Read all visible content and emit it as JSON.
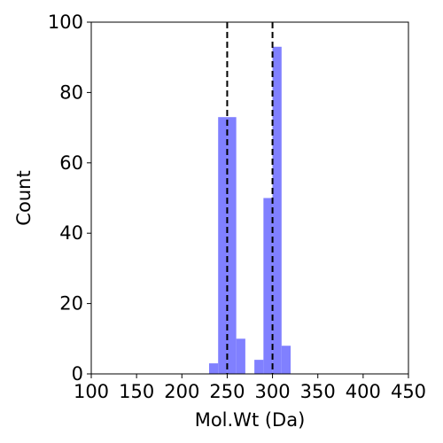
{
  "chart_data": {
    "type": "bar",
    "title": "",
    "xlabel": "Mol.Wt (Da)",
    "ylabel": "Count",
    "xlim": [
      100,
      450
    ],
    "ylim": [
      0,
      100
    ],
    "xticks": [
      100,
      150,
      200,
      250,
      300,
      350,
      400,
      450
    ],
    "yticks": [
      0,
      20,
      40,
      60,
      80,
      100
    ],
    "grid": false,
    "bar_color": "#8080ff",
    "bin_width": 10,
    "bins": [
      {
        "x0": 230,
        "x1": 240,
        "count": 3
      },
      {
        "x0": 240,
        "x1": 250,
        "count": 73
      },
      {
        "x0": 250,
        "x1": 260,
        "count": 73
      },
      {
        "x0": 260,
        "x1": 270,
        "count": 10
      },
      {
        "x0": 280,
        "x1": 290,
        "count": 4
      },
      {
        "x0": 290,
        "x1": 300,
        "count": 50
      },
      {
        "x0": 300,
        "x1": 310,
        "count": 93
      },
      {
        "x0": 310,
        "x1": 320,
        "count": 8
      }
    ],
    "reference_lines": [
      {
        "x": 250,
        "style": "dashed",
        "color": "#000000"
      },
      {
        "x": 300,
        "style": "dashed",
        "color": "#000000"
      }
    ]
  }
}
